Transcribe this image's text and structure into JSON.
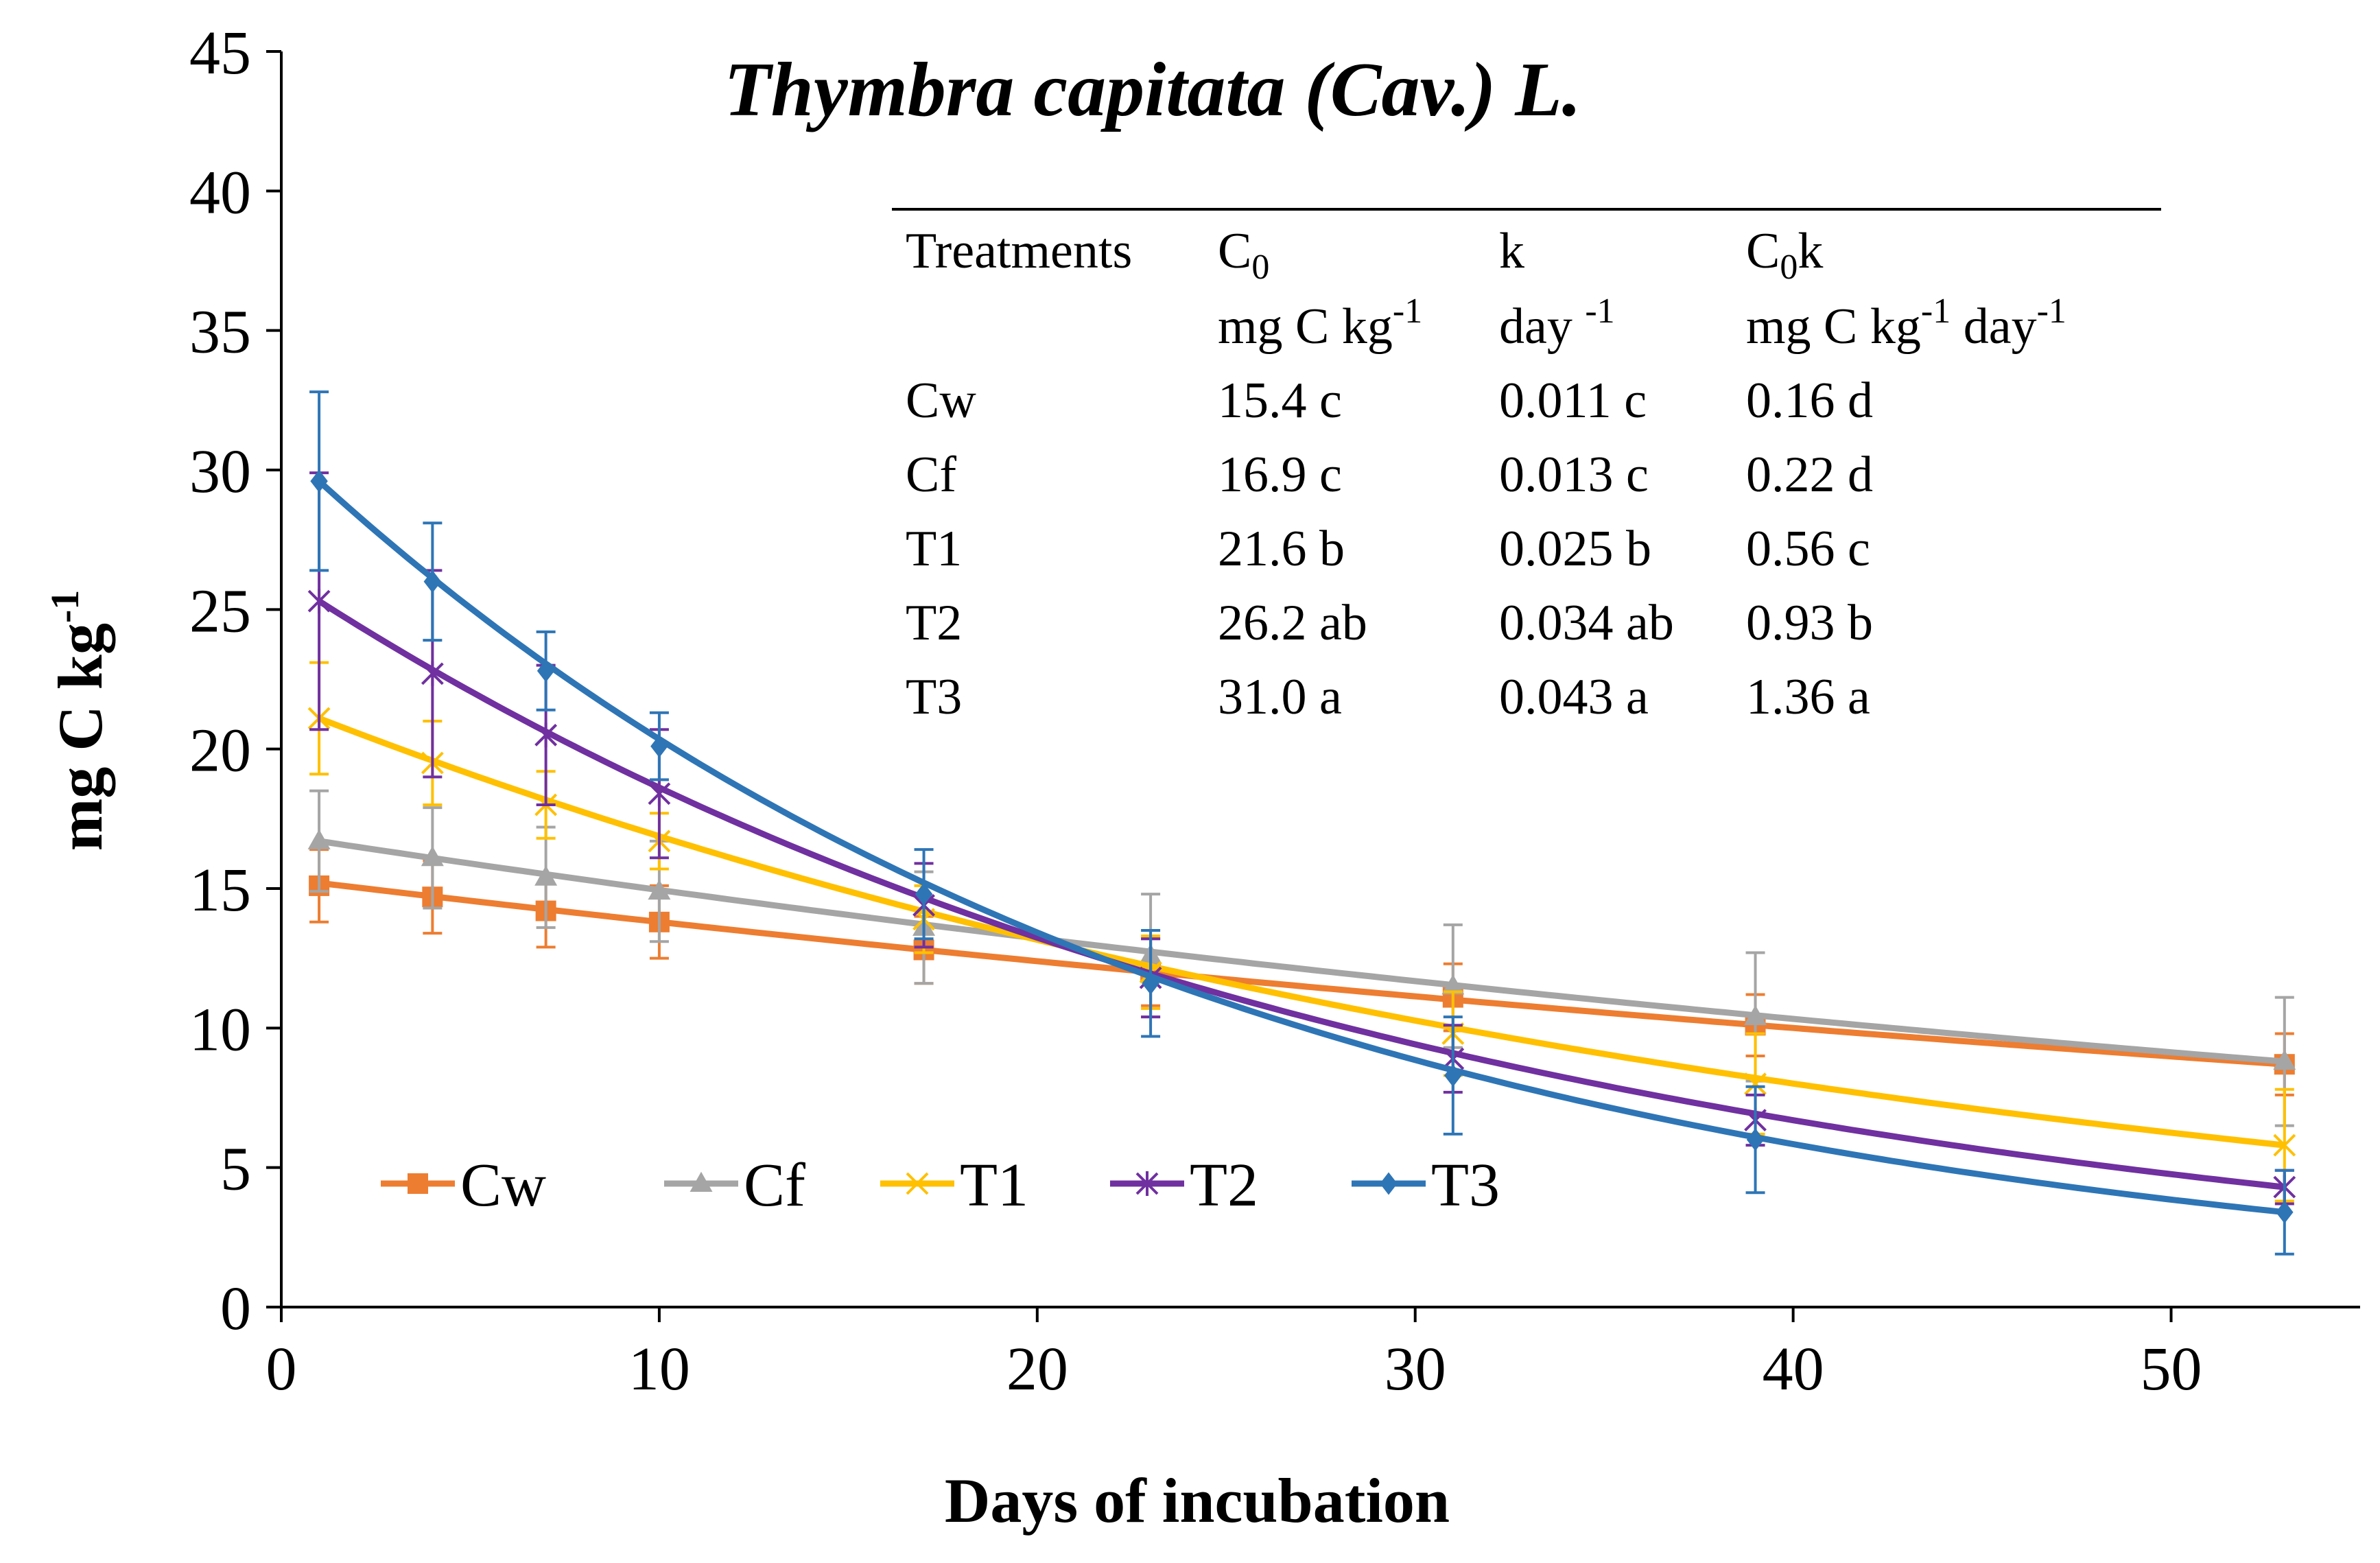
{
  "chart_data": {
    "type": "line",
    "title": "Thymbra capitata (Cav.) L.",
    "xlabel": "Days of incubation",
    "ylabel": "mg C kg-1",
    "ylabel_main": "mg C kg",
    "ylabel_sup": "-1",
    "xlim": [
      0,
      55
    ],
    "ylim": [
      0,
      45
    ],
    "xticks": [
      0,
      10,
      20,
      30,
      40,
      50
    ],
    "yticks": [
      0,
      5,
      10,
      15,
      20,
      25,
      30,
      35,
      40,
      45
    ],
    "x": [
      1,
      4,
      7,
      10,
      17,
      23,
      31,
      39,
      53
    ],
    "legend_position": "bottom-left",
    "series": [
      {
        "name": "Cw",
        "color": "#ED7D31",
        "marker": "square",
        "points": [
          [
            1,
            15.1
          ],
          [
            4,
            14.7
          ],
          [
            7,
            14.2
          ],
          [
            10,
            13.8
          ],
          [
            17,
            12.8
          ],
          [
            23,
            12.0
          ],
          [
            31,
            11.1
          ],
          [
            39,
            10.1
          ],
          [
            53,
            8.7
          ]
        ],
        "errors": [
          1.3,
          1.3,
          1.3,
          1.3,
          1.2,
          1.2,
          1.2,
          1.1,
          1.1
        ],
        "curve": [
          [
            1,
            15.2
          ],
          [
            53,
            8.7
          ]
        ]
      },
      {
        "name": "Cf",
        "color": "#A5A5A5",
        "marker": "triangle",
        "points": [
          [
            1,
            16.7
          ],
          [
            4,
            16.1
          ],
          [
            7,
            15.4
          ],
          [
            10,
            14.9
          ],
          [
            17,
            13.6
          ],
          [
            23,
            12.6
          ],
          [
            31,
            11.5
          ],
          [
            39,
            10.4
          ],
          [
            53,
            8.8
          ]
        ],
        "errors": [
          1.8,
          1.8,
          1.8,
          1.8,
          2.0,
          2.2,
          2.2,
          2.3,
          2.3
        ],
        "curve": [
          [
            1,
            16.7
          ],
          [
            53,
            8.8
          ]
        ]
      },
      {
        "name": "T1",
        "color": "#FFC000",
        "marker": "x",
        "points": [
          [
            1,
            21.1
          ],
          [
            4,
            19.5
          ],
          [
            7,
            18.0
          ],
          [
            10,
            16.7
          ],
          [
            17,
            13.9
          ],
          [
            23,
            12.0
          ],
          [
            31,
            9.8
          ],
          [
            39,
            8.0
          ],
          [
            53,
            5.8
          ]
        ],
        "errors": [
          2.0,
          1.5,
          1.2,
          1.0,
          1.2,
          1.3,
          1.5,
          1.8,
          2.0
        ],
        "curve": [
          [
            1,
            21.1
          ],
          [
            53,
            5.8
          ]
        ]
      },
      {
        "name": "T2",
        "color": "#7030A0",
        "marker": "star",
        "points": [
          [
            1,
            25.3
          ],
          [
            4,
            22.7
          ],
          [
            7,
            20.5
          ],
          [
            10,
            18.4
          ],
          [
            17,
            14.4
          ],
          [
            23,
            11.8
          ],
          [
            31,
            8.9
          ],
          [
            39,
            6.7
          ],
          [
            53,
            4.3
          ]
        ],
        "errors": [
          4.6,
          3.7,
          2.5,
          2.3,
          1.5,
          1.4,
          1.2,
          0.9,
          0.6
        ],
        "curve": [
          [
            1,
            25.3
          ],
          [
            53,
            4.3
          ]
        ]
      },
      {
        "name": "T3",
        "color": "#2E75B6",
        "marker": "diamond",
        "points": [
          [
            1,
            29.6
          ],
          [
            4,
            26.0
          ],
          [
            7,
            22.8
          ],
          [
            10,
            20.1
          ],
          [
            17,
            14.8
          ],
          [
            23,
            11.6
          ],
          [
            31,
            8.3
          ],
          [
            39,
            6.0
          ],
          [
            53,
            3.4
          ]
        ],
        "errors": [
          3.2,
          2.1,
          1.4,
          1.2,
          1.6,
          1.9,
          2.1,
          1.9,
          1.5
        ],
        "curve": [
          [
            1,
            29.6
          ],
          [
            53,
            3.4
          ]
        ]
      }
    ],
    "inset_table": {
      "headers": [
        {
          "main": "Treatments",
          "sub": ""
        },
        {
          "main": "C",
          "sub": "0"
        },
        {
          "main": "k",
          "sub": ""
        },
        {
          "main": "C",
          "sub": "0",
          "tail": "k"
        }
      ],
      "units": [
        {
          "main": "",
          "sup": ""
        },
        {
          "main": "mg C kg",
          "sup": "-1"
        },
        {
          "main": "day ",
          "sup": "-1"
        },
        {
          "main": "mg C kg",
          "sup": "-1",
          "main2": " day",
          "sup2": "-1"
        }
      ],
      "rows": [
        [
          "Cw",
          "15.4 c",
          "0.011 c",
          "0.16 d"
        ],
        [
          "Cf",
          "16.9 c",
          "0.013 c",
          "0.22 d"
        ],
        [
          "T1",
          "21.6 b",
          "0.025 b",
          "0.56 c"
        ],
        [
          "T2",
          "26.2 ab",
          "0.034 ab",
          "0.93 b"
        ],
        [
          "T3",
          "31.0 a",
          "0.043 a",
          "1.36 a"
        ]
      ]
    }
  }
}
